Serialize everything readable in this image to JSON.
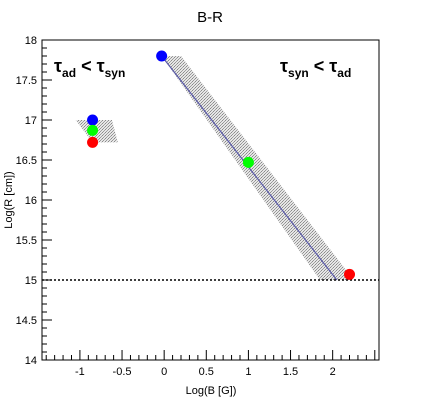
{
  "chart_data": {
    "type": "scatter",
    "title": "B-R",
    "xlabel": "Log(B [G])",
    "ylabel": "Log(R [cm])",
    "xlim": [
      -1.45,
      2.55
    ],
    "ylim": [
      14,
      18
    ],
    "xticks": [
      -1,
      -0.5,
      0,
      0.5,
      1,
      1.5,
      2
    ],
    "yticks": [
      14,
      14.5,
      15,
      15.5,
      16,
      16.5,
      17,
      17.5,
      18
    ],
    "grid": false,
    "legend": "none",
    "hline": {
      "y": 15,
      "style": "dotted"
    },
    "band": {
      "line_start": {
        "x": -0.03,
        "y": 17.8
      },
      "line_end": {
        "x": 2.05,
        "y": 15.0
      },
      "polygon": [
        {
          "x": -0.03,
          "y": 17.8
        },
        {
          "x": 0.2,
          "y": 17.8
        },
        {
          "x": 2.25,
          "y": 15.0
        },
        {
          "x": 1.85,
          "y": 15.0
        }
      ],
      "line_color": "#5a5aa8",
      "fill_color": "#c8c8c8"
    },
    "small_band": {
      "polygon": [
        {
          "x": -1.05,
          "y": 17.0
        },
        {
          "x": -0.62,
          "y": 17.0
        },
        {
          "x": -0.55,
          "y": 16.72
        },
        {
          "x": -0.85,
          "y": 16.72
        }
      ]
    },
    "series": [
      {
        "color": "#0000ff",
        "points": [
          {
            "x": -0.03,
            "y": 17.8
          },
          {
            "x": -0.85,
            "y": 17.0
          }
        ]
      },
      {
        "color": "#00ff00",
        "points": [
          {
            "x": 1.0,
            "y": 16.47
          },
          {
            "x": -0.85,
            "y": 16.87
          }
        ]
      },
      {
        "color": "#ff0000",
        "points": [
          {
            "x": 2.2,
            "y": 15.07
          },
          {
            "x": -0.85,
            "y": 16.72
          }
        ]
      }
    ],
    "annotations": [
      {
        "pos": "top-left",
        "lhs_symbol": "τ",
        "lhs_sub": "ad",
        "op": "<",
        "rhs_symbol": "τ",
        "rhs_sub": "syn"
      },
      {
        "pos": "top-right",
        "lhs_symbol": "τ",
        "lhs_sub": "syn",
        "op": "<",
        "rhs_symbol": "τ",
        "rhs_sub": "ad"
      }
    ]
  }
}
